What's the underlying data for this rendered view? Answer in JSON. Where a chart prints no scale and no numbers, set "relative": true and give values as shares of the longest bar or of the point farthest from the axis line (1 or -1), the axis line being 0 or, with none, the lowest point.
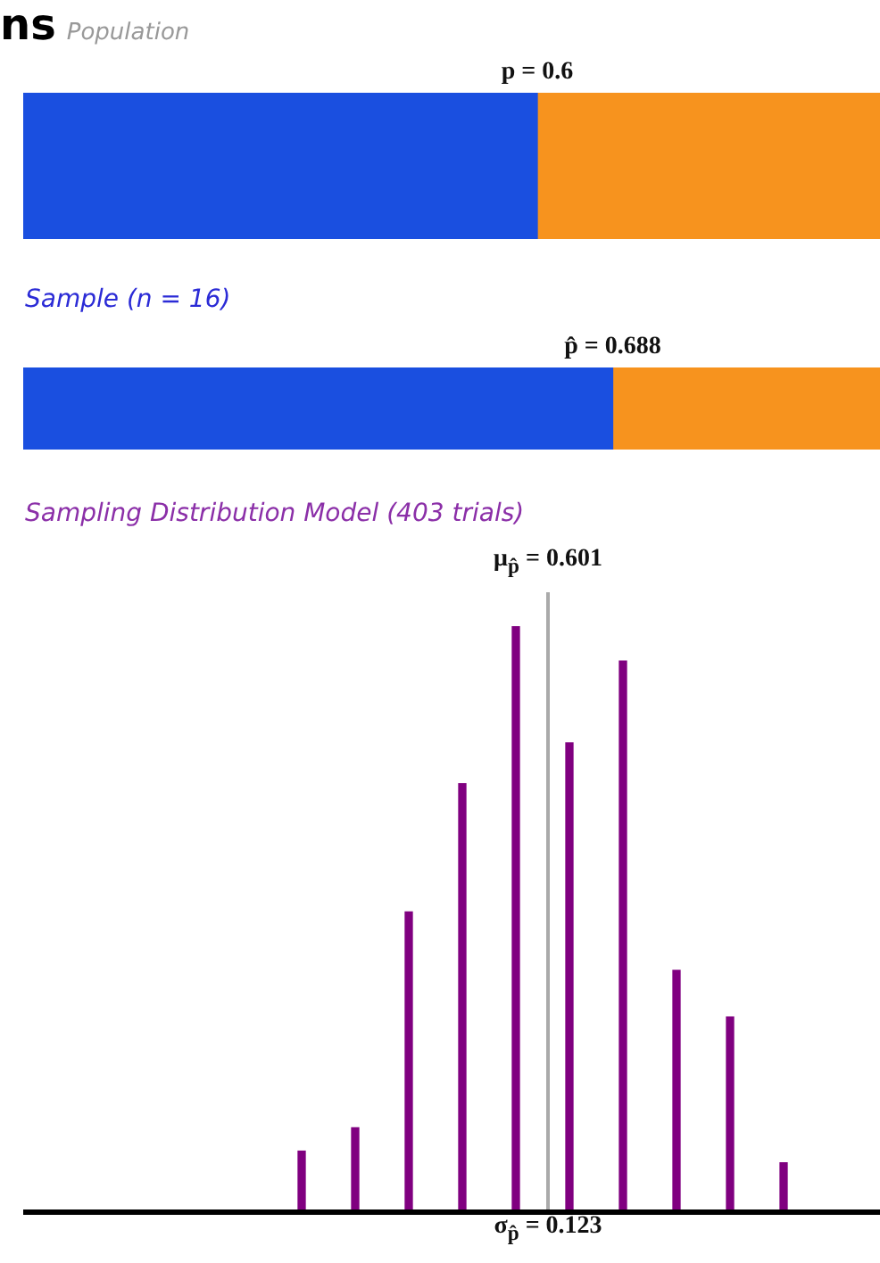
{
  "chart_data": [
    {
      "type": "bar",
      "title": "ns",
      "subtitle": "Population",
      "orientation": "horizontal",
      "stacked": true,
      "relative": true,
      "categories": [
        null
      ],
      "series": [
        {
          "color": "#1a4fe0",
          "values": [
            0.6
          ]
        },
        {
          "color": "#f7931e",
          "values": [
            0.4
          ]
        }
      ],
      "annotations": [
        "p = 0.6"
      ]
    },
    {
      "type": "bar",
      "title": "Sample (n = 16)",
      "orientation": "horizontal",
      "stacked": true,
      "relative": true,
      "categories": [
        null
      ],
      "series": [
        {
          "color": "#1a4fe0",
          "values": [
            0.688
          ]
        },
        {
          "color": "#f7931e",
          "values": [
            0.312
          ]
        }
      ],
      "annotations": [
        "p̂ = 0.688"
      ]
    },
    {
      "type": "bar",
      "title": "Sampling Distribution Model (403 trials)",
      "relative": true,
      "categories": [
        null,
        null,
        null,
        null,
        null,
        null,
        null,
        null,
        null,
        null
      ],
      "values": [
        0.1,
        0.14,
        0.51,
        0.73,
        1,
        0.8,
        0.94,
        0.41,
        0.33,
        0.08
      ],
      "color": "#800080",
      "annotations": [
        "μ$_{p̂}$ = 0.601",
        "σ$_{p̂}$ = 0.123"
      ]
    }
  ]
}
